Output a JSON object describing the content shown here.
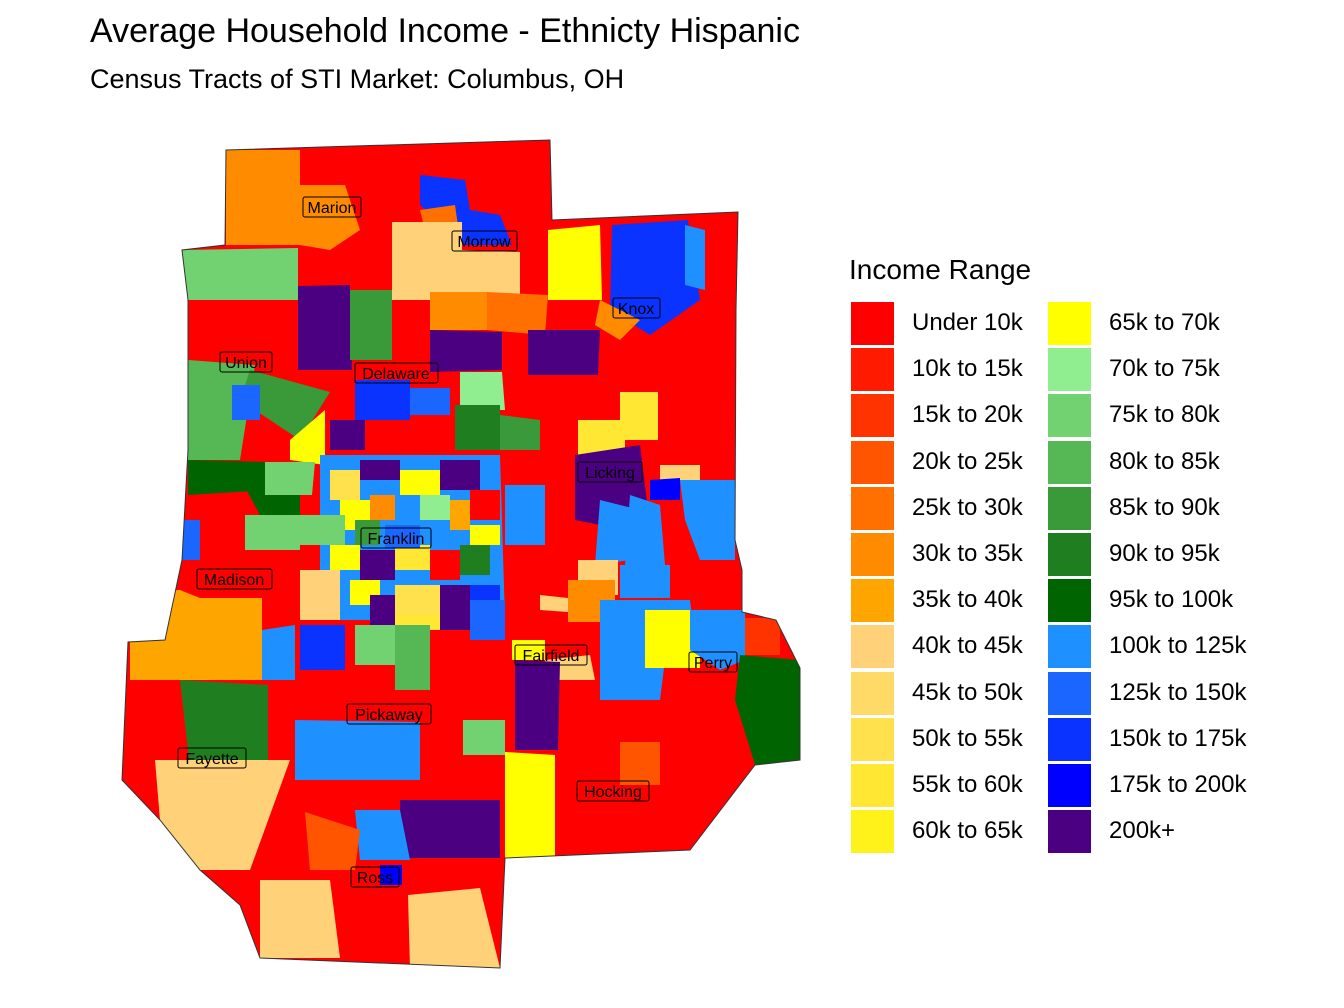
{
  "title": "Average Household Income - Ethnicty Hispanic",
  "subtitle": "Census Tracts of STI Market: Columbus, OH",
  "legend": {
    "title": "Income Range",
    "items": [
      {
        "label": "Under 10k",
        "color": "#FF0000"
      },
      {
        "label": "10k to 15k",
        "color": "#FF1A00"
      },
      {
        "label": "15k to 20k",
        "color": "#FF3300"
      },
      {
        "label": "20k to 25k",
        "color": "#FF5500"
      },
      {
        "label": "25k to 30k",
        "color": "#FF7000"
      },
      {
        "label": "30k to 35k",
        "color": "#FF8C00"
      },
      {
        "label": "35k to 40k",
        "color": "#FFA500"
      },
      {
        "label": "40k to 45k",
        "color": "#FFD27A"
      },
      {
        "label": "45k to 50k",
        "color": "#FFDA66"
      },
      {
        "label": "50k to 55k",
        "color": "#FFE14D"
      },
      {
        "label": "55k to 60k",
        "color": "#FFE733"
      },
      {
        "label": "60k to 65k",
        "color": "#FFF21A"
      },
      {
        "label": "65k to 70k",
        "color": "#FFFF00"
      },
      {
        "label": "70k to 75k",
        "color": "#90EE90"
      },
      {
        "label": "75k to 80k",
        "color": "#72D272"
      },
      {
        "label": "80k to 85k",
        "color": "#55B855"
      },
      {
        "label": "85k to 90k",
        "color": "#3A9A3A"
      },
      {
        "label": "90k to 95k",
        "color": "#1F7E1F"
      },
      {
        "label": "95k to 100k",
        "color": "#006400"
      },
      {
        "label": "100k to 125k",
        "color": "#1E90FF"
      },
      {
        "label": "125k to 150k",
        "color": "#1A66FF"
      },
      {
        "label": "150k to 175k",
        "color": "#0A33FF"
      },
      {
        "label": "175k to 200k",
        "color": "#0000FF"
      },
      {
        "label": "200k+",
        "color": "#4B0082"
      }
    ]
  },
  "counties": [
    {
      "name": "Marion"
    },
    {
      "name": "Morrow"
    },
    {
      "name": "Knox"
    },
    {
      "name": "Union"
    },
    {
      "name": "Delaware"
    },
    {
      "name": "Licking"
    },
    {
      "name": "Franklin"
    },
    {
      "name": "Madison"
    },
    {
      "name": "Fairfield"
    },
    {
      "name": "Perry"
    },
    {
      "name": "Pickaway"
    },
    {
      "name": "Fayette"
    },
    {
      "name": "Hocking"
    },
    {
      "name": "Ross"
    }
  ]
}
